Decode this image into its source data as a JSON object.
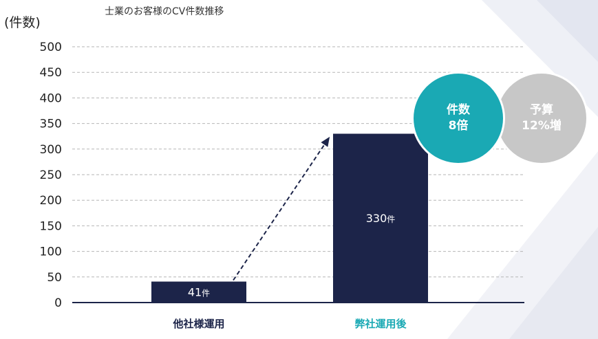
{
  "title": "士業のお客様のCV件数推移",
  "colors": {
    "bar": "#1c2449",
    "accent": "#1aa9b4",
    "grey_badge": "#c7c7c7",
    "axis": "#1c2449",
    "grid": "#b5b5b5"
  },
  "chart_data": {
    "type": "bar",
    "ylabel": "(件数)",
    "ylim": [
      0,
      500
    ],
    "yticks": [
      0,
      50,
      100,
      150,
      200,
      250,
      300,
      350,
      400,
      450,
      500
    ],
    "grid": "dashed-horizontal",
    "categories": [
      "他社様運用",
      "弊社運用後"
    ],
    "category_colors": [
      "#1c2449",
      "#1aa9b4"
    ],
    "values": [
      41,
      330
    ],
    "value_unit": "件",
    "arrow": {
      "from": "他社様運用",
      "to": "弊社運用後",
      "style": "dashed"
    }
  },
  "badges": {
    "count": {
      "line1": "件数",
      "line2": "8倍"
    },
    "budget": {
      "line1": "予算",
      "line2": "12%増"
    }
  }
}
